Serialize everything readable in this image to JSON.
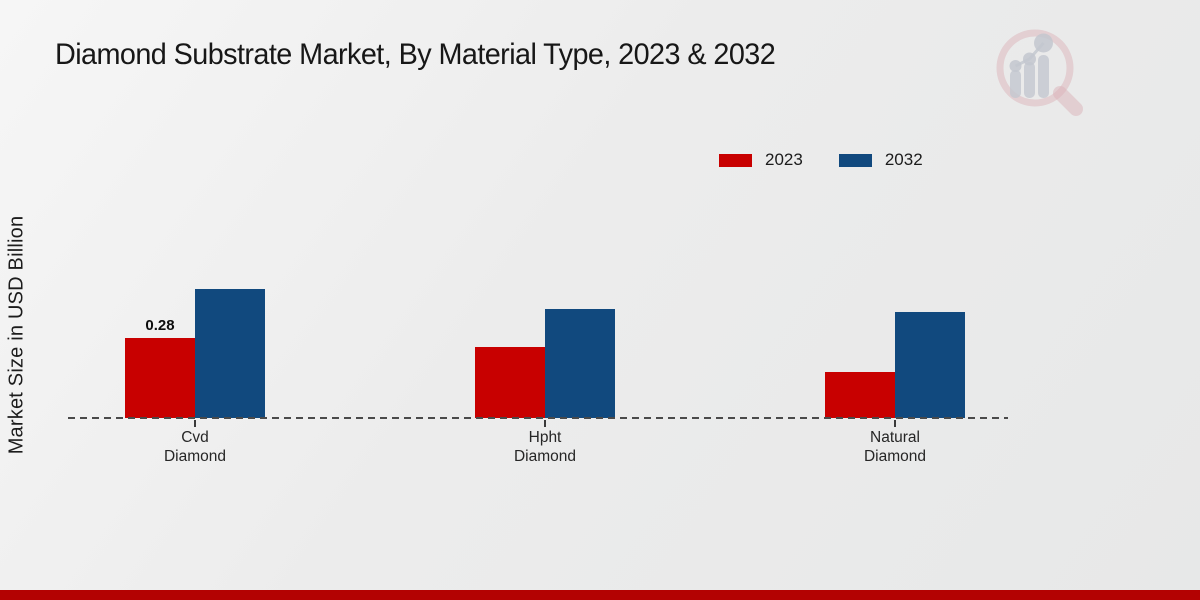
{
  "title": "Diamond Substrate Market, By Material Type, 2023 & 2032",
  "legend": [
    {
      "label": "2023",
      "color": "#c80000"
    },
    {
      "label": "2032",
      "color": "#11497e"
    }
  ],
  "chart_data": {
    "type": "bar",
    "title": "Diamond Substrate Market, By Material Type, 2023 & 2032",
    "categories": [
      "Cvd Diamond",
      "Hpht Diamond",
      "Natural Diamond"
    ],
    "series": [
      {
        "name": "2023",
        "color": "#c80000",
        "values": [
          0.28,
          0.25,
          0.16
        ]
      },
      {
        "name": "2032",
        "color": "#11497e",
        "values": [
          0.45,
          0.38,
          0.37
        ]
      }
    ],
    "data_labels": [
      {
        "series": "2023",
        "category": "Cvd Diamond",
        "text": "0.28"
      }
    ],
    "xlabel": "",
    "ylabel": "Market Size in USD Billion",
    "ylim": [
      0,
      0.5
    ],
    "grid": "off",
    "legend_position": "top-right",
    "baseline_style": "dashed"
  },
  "watermark": {
    "name": "market-research-magnifier-logo"
  },
  "footer": {
    "bar_color": "#b30202"
  }
}
